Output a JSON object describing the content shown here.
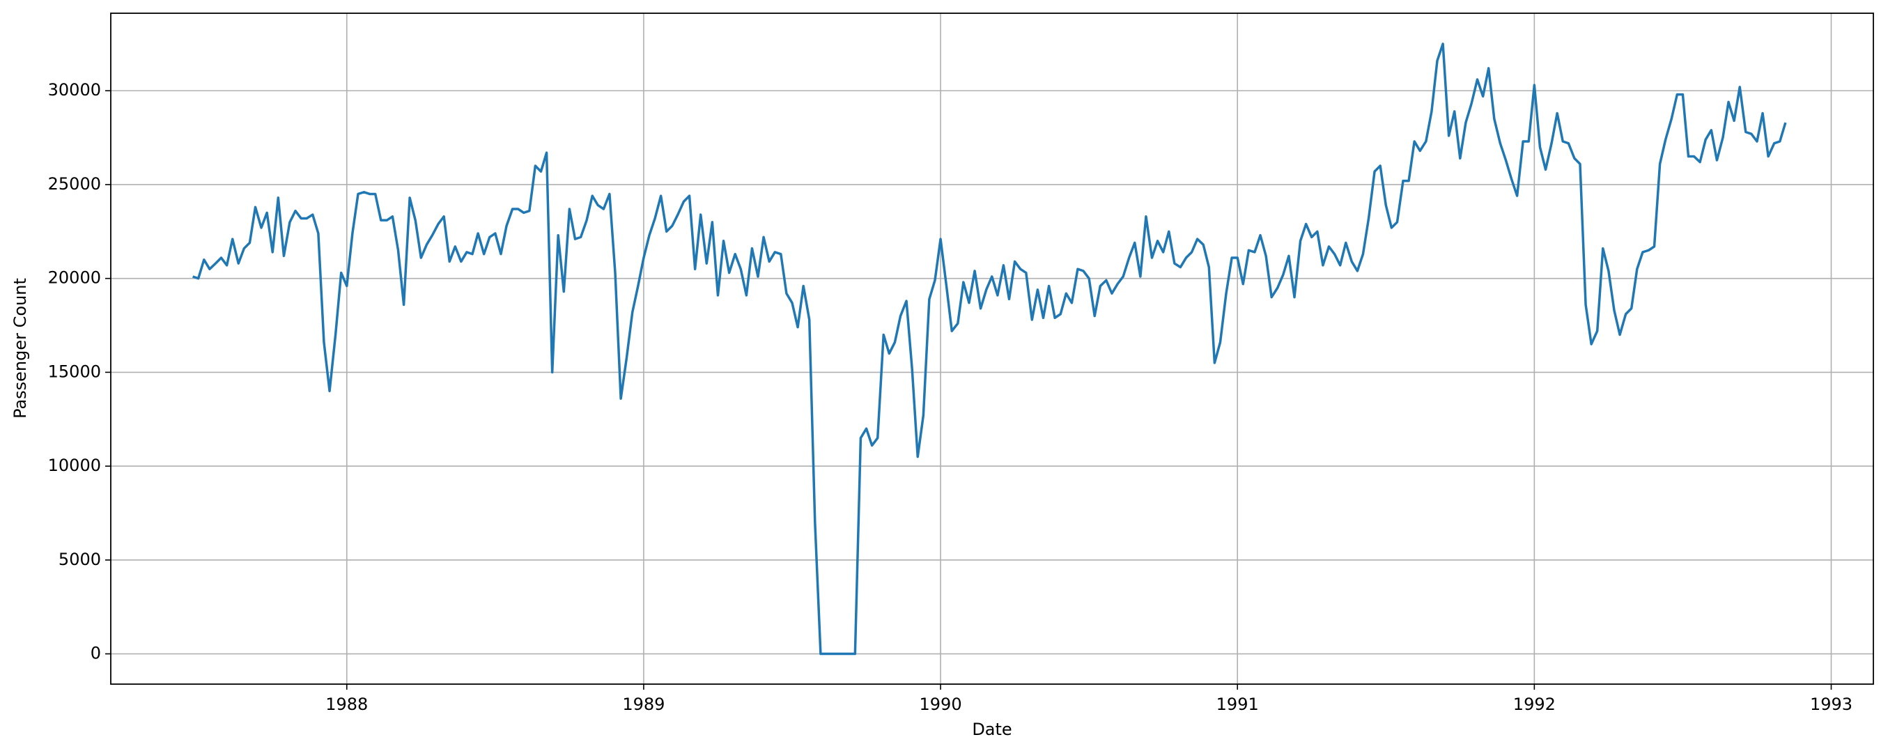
{
  "chart_data": {
    "type": "line",
    "xlabel": "Date",
    "ylabel": "Passenger Count",
    "color": "#1f77b4",
    "grid": true,
    "xlim": [
      1987.205,
      1993.142
    ],
    "xticks": [
      1988,
      1989,
      1990,
      1991,
      1992,
      1993
    ],
    "ylim": [
      -1613,
      34129
    ],
    "yticks": [
      0,
      5000,
      10000,
      15000,
      20000,
      25000,
      30000
    ],
    "x": [
      1987.481,
      1987.5,
      1987.519,
      1987.538,
      1987.558,
      1987.577,
      1987.596,
      1987.615,
      1987.635,
      1987.654,
      1987.673,
      1987.692,
      1987.712,
      1987.731,
      1987.75,
      1987.769,
      1987.788,
      1987.808,
      1987.827,
      1987.846,
      1987.865,
      1987.885,
      1987.904,
      1987.923,
      1987.942,
      1987.962,
      1987.981,
      1988,
      1988.019,
      1988.038,
      1988.058,
      1988.077,
      1988.096,
      1988.115,
      1988.135,
      1988.154,
      1988.173,
      1988.192,
      1988.212,
      1988.231,
      1988.25,
      1988.269,
      1988.288,
      1988.308,
      1988.327,
      1988.346,
      1988.365,
      1988.385,
      1988.404,
      1988.423,
      1988.442,
      1988.462,
      1988.481,
      1988.5,
      1988.519,
      1988.538,
      1988.558,
      1988.577,
      1988.596,
      1988.615,
      1988.635,
      1988.654,
      1988.673,
      1988.692,
      1988.712,
      1988.731,
      1988.75,
      1988.769,
      1988.788,
      1988.808,
      1988.827,
      1988.846,
      1988.865,
      1988.885,
      1988.904,
      1988.923,
      1988.942,
      1988.962,
      1988.981,
      1989,
      1989.019,
      1989.038,
      1989.058,
      1989.077,
      1989.096,
      1989.115,
      1989.135,
      1989.154,
      1989.173,
      1989.192,
      1989.212,
      1989.231,
      1989.25,
      1989.269,
      1989.288,
      1989.308,
      1989.327,
      1989.346,
      1989.365,
      1989.385,
      1989.404,
      1989.423,
      1989.442,
      1989.462,
      1989.481,
      1989.5,
      1989.519,
      1989.538,
      1989.558,
      1989.577,
      1989.596,
      1989.615,
      1989.635,
      1989.654,
      1989.673,
      1989.692,
      1989.712,
      1989.731,
      1989.75,
      1989.769,
      1989.788,
      1989.808,
      1989.827,
      1989.846,
      1989.865,
      1989.885,
      1989.904,
      1989.923,
      1989.942,
      1989.962,
      1989.981,
      1990,
      1990.019,
      1990.038,
      1990.058,
      1990.077,
      1990.096,
      1990.115,
      1990.135,
      1990.154,
      1990.173,
      1990.192,
      1990.212,
      1990.231,
      1990.25,
      1990.269,
      1990.288,
      1990.308,
      1990.327,
      1990.346,
      1990.365,
      1990.385,
      1990.404,
      1990.423,
      1990.442,
      1990.462,
      1990.481,
      1990.5,
      1990.519,
      1990.538,
      1990.558,
      1990.577,
      1990.596,
      1990.615,
      1990.635,
      1990.654,
      1990.673,
      1990.692,
      1990.712,
      1990.731,
      1990.75,
      1990.769,
      1990.788,
      1990.808,
      1990.827,
      1990.846,
      1990.865,
      1990.885,
      1990.904,
      1990.923,
      1990.942,
      1990.962,
      1990.981,
      1991,
      1991.019,
      1991.038,
      1991.058,
      1991.077,
      1991.096,
      1991.115,
      1991.135,
      1991.154,
      1991.173,
      1991.192,
      1991.212,
      1991.231,
      1991.25,
      1991.269,
      1991.288,
      1991.308,
      1991.327,
      1991.346,
      1991.365,
      1991.385,
      1991.404,
      1991.423,
      1991.442,
      1991.462,
      1991.481,
      1991.5,
      1991.519,
      1991.538,
      1991.558,
      1991.577,
      1991.596,
      1991.615,
      1991.635,
      1991.654,
      1991.673,
      1991.692,
      1991.712,
      1991.731,
      1991.75,
      1991.769,
      1991.788,
      1991.808,
      1991.827,
      1991.846,
      1991.865,
      1991.885,
      1991.904,
      1991.923,
      1991.942,
      1991.962,
      1991.981,
      1992,
      1992.019,
      1992.038,
      1992.058,
      1992.077,
      1992.096,
      1992.115,
      1992.135,
      1992.154,
      1992.173,
      1992.192,
      1992.212,
      1992.231,
      1992.25,
      1992.269,
      1992.288,
      1992.308,
      1992.327,
      1992.346,
      1992.365,
      1992.385,
      1992.404,
      1992.423,
      1992.442,
      1992.462,
      1992.481,
      1992.5,
      1992.519,
      1992.538,
      1992.558,
      1992.577,
      1992.596,
      1992.615,
      1992.635,
      1992.654,
      1992.673,
      1992.692,
      1992.712,
      1992.731,
      1992.75,
      1992.769,
      1992.788,
      1992.808,
      1992.827,
      1992.846
    ],
    "values": [
      20100,
      20000,
      21000,
      20500,
      20800,
      21100,
      20700,
      22100,
      20800,
      21600,
      21900,
      23800,
      22700,
      23500,
      21400,
      24300,
      21200,
      23000,
      23600,
      23200,
      23200,
      23400,
      22400,
      16600,
      14000,
      17000,
      20300,
      19600,
      22400,
      24500,
      24600,
      24500,
      24500,
      23100,
      23100,
      23300,
      21500,
      18600,
      24300,
      23100,
      21100,
      21800,
      22300,
      22900,
      23300,
      20900,
      21700,
      20900,
      21400,
      21300,
      22400,
      21300,
      22200,
      22400,
      21300,
      22800,
      23700,
      23700,
      23500,
      23600,
      26000,
      25700,
      26700,
      15000,
      22300,
      19300,
      23700,
      22100,
      22200,
      23100,
      24400,
      23900,
      23700,
      24500,
      20300,
      13600,
      15700,
      18200,
      19600,
      21100,
      22300,
      23200,
      24400,
      22500,
      22800,
      23400,
      24100,
      24400,
      20500,
      23400,
      20800,
      23000,
      19100,
      22000,
      20300,
      21300,
      20500,
      19100,
      21600,
      20100,
      22200,
      20900,
      21400,
      21300,
      19200,
      18700,
      17400,
      19600,
      17800,
      7000,
      0,
      0,
      0,
      0,
      0,
      0,
      0,
      11500,
      12000,
      11100,
      11500,
      17000,
      16000,
      16600,
      18000,
      18800,
      15200,
      10500,
      12700,
      18900,
      19900,
      22100,
      19700,
      17200,
      17600,
      19800,
      18700,
      20400,
      18400,
      19400,
      20100,
      19100,
      20700,
      18900,
      20900,
      20500,
      20300,
      17800,
      19400,
      17900,
      19600,
      17900,
      18100,
      19200,
      18700,
      20500,
      20400,
      20000,
      18000,
      19600,
      19900,
      19200,
      19700,
      20100,
      21100,
      21900,
      20100,
      23300,
      21100,
      22000,
      21400,
      22500,
      20800,
      20600,
      21100,
      21400,
      22100,
      21800,
      20600,
      15500,
      16600,
      19200,
      21100,
      21100,
      19700,
      21500,
      21400,
      22300,
      21200,
      19000,
      19500,
      20200,
      21200,
      19000,
      22000,
      22900,
      22200,
      22500,
      20700,
      21700,
      21300,
      20700,
      21900,
      20900,
      20400,
      21300,
      23200,
      25700,
      26000,
      23900,
      22700,
      23000,
      25200,
      25200,
      27300,
      26800,
      27300,
      28900,
      31600,
      32500,
      27600,
      28900,
      26400,
      28300,
      29300,
      30600,
      29700,
      31200,
      28500,
      27200,
      26300,
      25300,
      24400,
      27300,
      27300,
      30300,
      27000,
      25800,
      27200,
      28800,
      27300,
      27200,
      26400,
      26100,
      18600,
      16500,
      17200,
      21600,
      20400,
      18300,
      17000,
      18100,
      18400,
      20500,
      21400,
      21500,
      21700,
      26100,
      27400,
      28500,
      29800,
      29800,
      26500,
      26500,
      26200,
      27400,
      27900,
      26300,
      27500,
      29400,
      28400,
      30200,
      27800,
      27700,
      27300,
      28800,
      26500,
      27200,
      27300,
      28300
    ]
  }
}
